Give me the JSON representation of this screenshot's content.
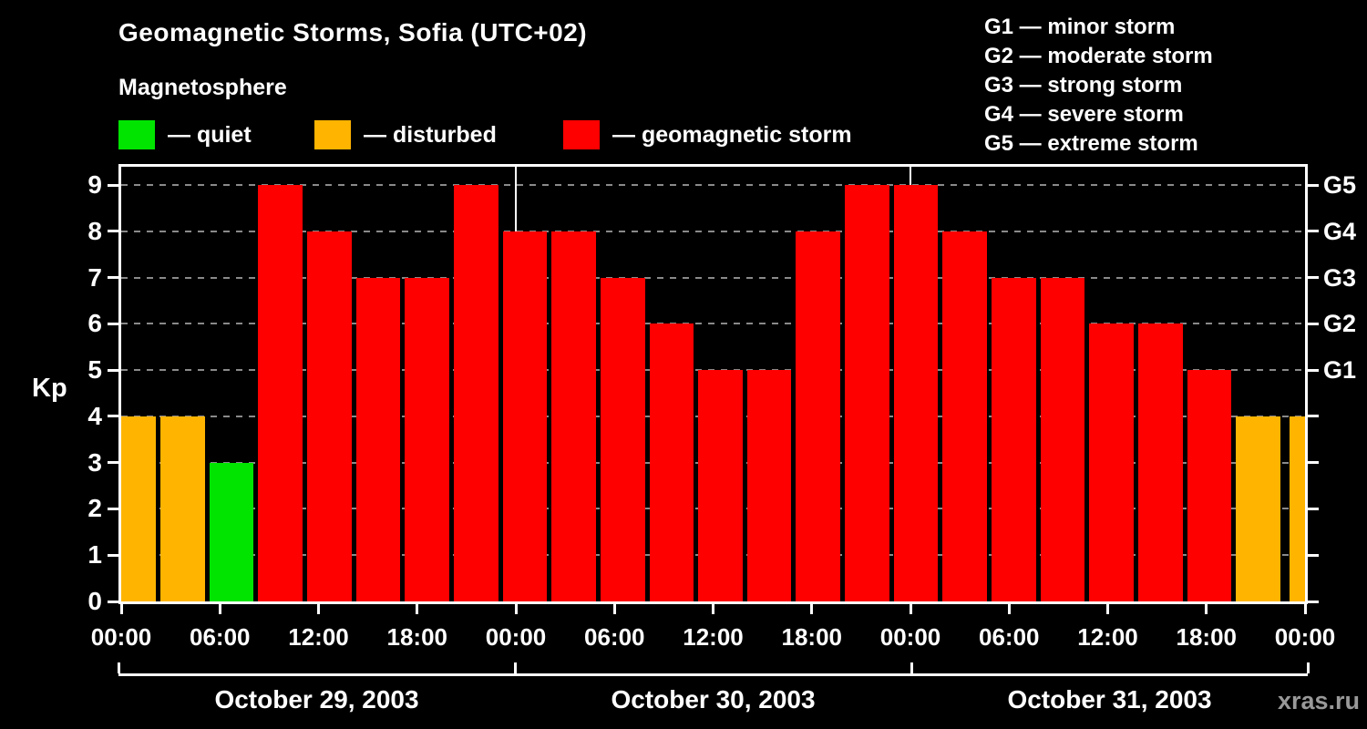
{
  "header": {
    "title": "Geomagnetic Storms, Sofia (UTC+02)",
    "subtitle": "Magnetosphere"
  },
  "legend": {
    "items": [
      {
        "label": "— quiet",
        "color": "#00e400"
      },
      {
        "label": "— disturbed",
        "color": "#ffb400"
      },
      {
        "label": "— geomagnetic storm",
        "color": "#ff0000"
      }
    ]
  },
  "g_legend": {
    "items": [
      {
        "label": "G1 — minor storm"
      },
      {
        "label": "G2 — moderate storm"
      },
      {
        "label": "G3 — strong storm"
      },
      {
        "label": "G4 — severe storm"
      },
      {
        "label": "G5 — extreme storm"
      }
    ]
  },
  "watermark": "xras.ru",
  "chart_data": {
    "type": "bar",
    "title": "Geomagnetic Storms, Sofia (UTC+02)",
    "ylabel": "Kp",
    "ylim": [
      0,
      9
    ],
    "y_ticks": [
      0,
      1,
      2,
      3,
      4,
      5,
      6,
      7,
      8,
      9
    ],
    "hours_span": 72,
    "x_tick_step_hours": 6,
    "x_tick_labels": [
      "00:00",
      "06:00",
      "12:00",
      "18:00",
      "00:00",
      "06:00",
      "12:00",
      "18:00",
      "00:00",
      "06:00",
      "12:00",
      "18:00",
      "00:00"
    ],
    "day_separators_hours": [
      24,
      48
    ],
    "dates": [
      "October 29, 2003",
      "October 30, 2003",
      "October 31, 2003"
    ],
    "right_axis_labels": [
      {
        "label": "G1",
        "kp": 5
      },
      {
        "label": "G2",
        "kp": 6
      },
      {
        "label": "G3",
        "kp": 7
      },
      {
        "label": "G4",
        "kp": 8
      },
      {
        "label": "G5",
        "kp": 9
      }
    ],
    "levels": {
      "quiet": "#00e400",
      "disturbed": "#ffb400",
      "storm": "#ff0000"
    },
    "bars": [
      {
        "kp": 4,
        "level": "disturbed",
        "clip": "left"
      },
      {
        "kp": 4,
        "level": "disturbed"
      },
      {
        "kp": 3,
        "level": "quiet"
      },
      {
        "kp": 9,
        "level": "storm"
      },
      {
        "kp": 8,
        "level": "storm"
      },
      {
        "kp": 7,
        "level": "storm"
      },
      {
        "kp": 7,
        "level": "storm"
      },
      {
        "kp": 9,
        "level": "storm"
      },
      {
        "kp": 8,
        "level": "storm"
      },
      {
        "kp": 8,
        "level": "storm"
      },
      {
        "kp": 7,
        "level": "storm"
      },
      {
        "kp": 6,
        "level": "storm"
      },
      {
        "kp": 5,
        "level": "storm"
      },
      {
        "kp": 5,
        "level": "storm"
      },
      {
        "kp": 8,
        "level": "storm"
      },
      {
        "kp": 9,
        "level": "storm"
      },
      {
        "kp": 9,
        "level": "storm"
      },
      {
        "kp": 8,
        "level": "storm"
      },
      {
        "kp": 7,
        "level": "storm"
      },
      {
        "kp": 7,
        "level": "storm"
      },
      {
        "kp": 6,
        "level": "storm"
      },
      {
        "kp": 6,
        "level": "storm"
      },
      {
        "kp": 5,
        "level": "storm"
      },
      {
        "kp": 4,
        "level": "disturbed"
      },
      {
        "kp": 4,
        "level": "disturbed",
        "clip": "right"
      }
    ]
  }
}
